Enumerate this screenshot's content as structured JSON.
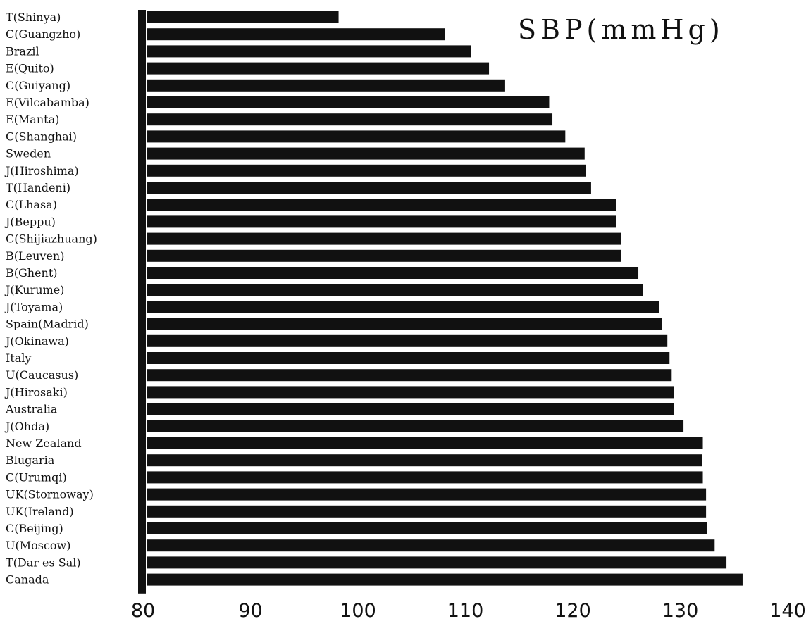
{
  "chart_data": {
    "type": "bar",
    "orientation": "horizontal",
    "title": "SBP(mmHg)",
    "xlabel": "",
    "ylabel": "",
    "xlim": [
      80,
      140
    ],
    "ticks": [
      "80",
      "90",
      "100",
      "110",
      "120",
      "130",
      "140"
    ],
    "grid": false,
    "bar_color": "#111111",
    "categories": [
      "T(Shinya)",
      "C(Guangzho)",
      "Brazil",
      "E(Quito)",
      "C(Guiyang)",
      "E(Vilcabamba)",
      "E(Manta)",
      "C(Shanghai)",
      "Sweden",
      "J(Hiroshima)",
      "T(Handeni)",
      "C(Lhasa)",
      "J(Beppu)",
      "C(Shijiazhuang)",
      "B(Leuven)",
      "B(Ghent)",
      "J(Kurume)",
      "J(Toyama)",
      "Spain(Madrid)",
      "J(Okinawa)",
      "Italy",
      "U(Caucasus)",
      "J(Hirosaki)",
      "Australia",
      "J(Ohda)",
      "New Zealand",
      "Blugaria",
      "C(Urumqi)",
      "UK(Stornoway)",
      "UK(Ireland)",
      "C(Beijing)",
      "U(Moscow)",
      "T(Dar es Sal)",
      "Canada"
    ],
    "values": [
      98.2,
      108.1,
      110.5,
      112.2,
      113.7,
      117.8,
      118.1,
      119.3,
      121.1,
      121.2,
      121.7,
      124.0,
      124.0,
      124.5,
      124.5,
      126.1,
      126.5,
      128.0,
      128.3,
      128.8,
      129.0,
      129.2,
      129.4,
      129.4,
      130.3,
      132.1,
      132.0,
      132.1,
      132.4,
      132.4,
      132.5,
      133.2,
      134.3,
      135.8
    ]
  }
}
